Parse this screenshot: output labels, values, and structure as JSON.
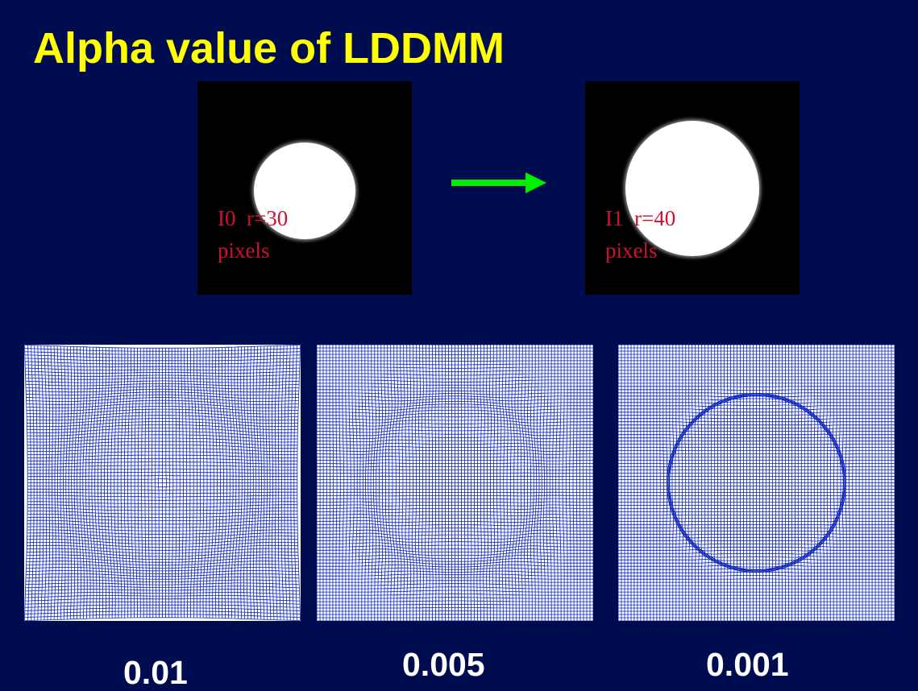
{
  "slide": {
    "title": "Alpha value of LDDMM",
    "background_color": "#000c50",
    "title_color": "#ffff00"
  },
  "source_images": [
    {
      "id": "I0",
      "label": "I0  r=30\npixels",
      "radius_pixels": 30
    },
    {
      "id": "I1",
      "label": "I1  r=40\npixels",
      "radius_pixels": 40
    }
  ],
  "arrow": {
    "color": "#00ee00",
    "direction": "right"
  },
  "deformation_grids": [
    {
      "alpha": "0.01",
      "line_color": "#0a22b8"
    },
    {
      "alpha": "0.005",
      "line_color": "#0a22b8"
    },
    {
      "alpha": "0.001",
      "line_color": "#0a22b8"
    }
  ],
  "label_color": "#cc1133"
}
